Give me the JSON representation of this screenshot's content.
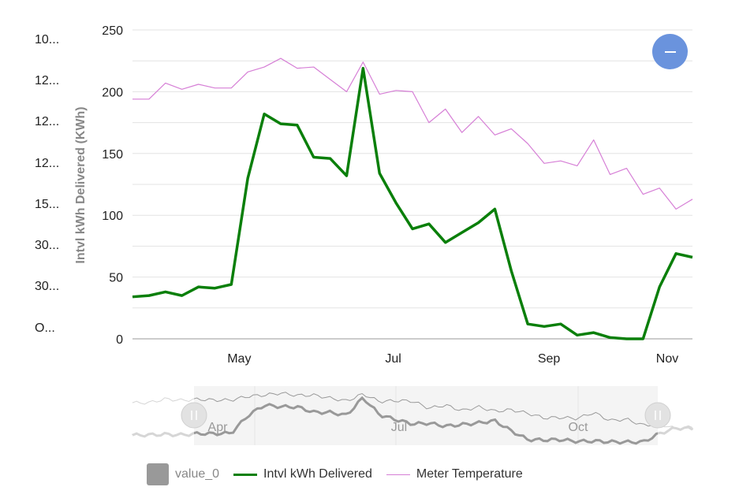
{
  "side_labels": [
    "10...",
    "12...",
    "12...",
    "12...",
    "15...",
    "30...",
    "30...",
    "O..."
  ],
  "zoom_button": {
    "icon": "minus-icon",
    "color": "#6a93dd"
  },
  "chart_data": {
    "type": "line",
    "title": "",
    "xlabel": "",
    "ylabel": "Intvl kWh Delivered (KWh)",
    "ylim": [
      0,
      250
    ],
    "yticks": [
      0,
      50,
      100,
      150,
      200,
      250
    ],
    "xlim": [
      0,
      32
    ],
    "xticks": [
      {
        "label": "May",
        "x": 6.1
      },
      {
        "label": "Jul",
        "x": 14.9
      },
      {
        "label": "Sep",
        "x": 23.8
      },
      {
        "label": "Nov",
        "x": 32.6
      }
    ],
    "series": [
      {
        "name": "Intvl kWh Delivered",
        "color": "#0a7f0a",
        "values": [
          34,
          35,
          38,
          35,
          42,
          41,
          44,
          130,
          182,
          174,
          173,
          147,
          146,
          132,
          219,
          134,
          110,
          89,
          93,
          78,
          86,
          94,
          105,
          55,
          12,
          10,
          12,
          3,
          5,
          1,
          0,
          0,
          42,
          69,
          66
        ]
      },
      {
        "name": "Meter Temperature",
        "color": "#d67fd6",
        "values": [
          194,
          194,
          207,
          202,
          206,
          203,
          203,
          216,
          220,
          227,
          219,
          220,
          210,
          200,
          224,
          198,
          201,
          200,
          175,
          186,
          167,
          180,
          165,
          170,
          158,
          142,
          144,
          140,
          161,
          133,
          138,
          117,
          122,
          105,
          113
        ]
      }
    ],
    "navigator": {
      "tick_labels": [
        "Apr",
        "Jul",
        "Oct"
      ],
      "series_color": "#999999"
    },
    "legend": {
      "position": "bottom",
      "items": [
        {
          "label": "value_0",
          "color": "#999999",
          "kind": "box"
        },
        {
          "label": "Intvl kWh Delivered",
          "color": "#0a7f0a",
          "kind": "line"
        },
        {
          "label": "Meter Temperature",
          "color": "#d67fd6",
          "kind": "line"
        }
      ]
    }
  }
}
